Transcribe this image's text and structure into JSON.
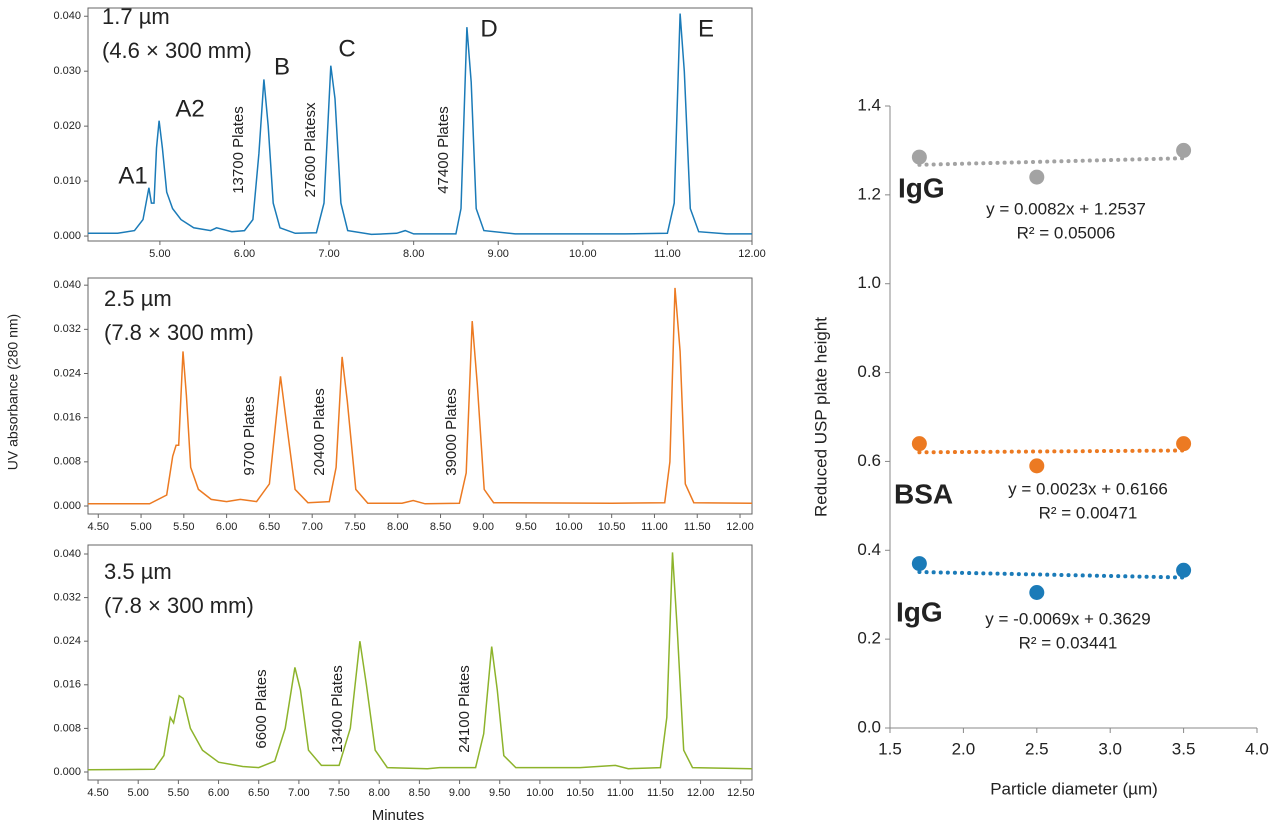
{
  "chart_data": [
    {
      "type": "line",
      "title": "1.7 µm",
      "subtitle": "(4.6 × 300 mm)",
      "color": "#1b7bb8",
      "peaks": [
        "A1",
        "A2",
        "B",
        "C",
        "D",
        "E"
      ],
      "plates": [
        "13700 Plates",
        "27600 Platesx",
        "47400 Plates"
      ],
      "x": [
        4.15,
        4.5,
        4.7,
        4.8,
        4.87,
        4.9,
        4.93,
        4.96,
        4.99,
        5.03,
        5.08,
        5.15,
        5.25,
        5.4,
        5.6,
        5.67,
        5.85,
        6.0,
        6.1,
        6.17,
        6.23,
        6.28,
        6.34,
        6.42,
        6.6,
        6.85,
        6.94,
        7.02,
        7.07,
        7.14,
        7.22,
        7.5,
        7.8,
        7.9,
        8.0,
        8.5,
        8.56,
        8.63,
        8.68,
        8.74,
        8.83,
        9.2,
        10.5,
        11.0,
        11.08,
        11.15,
        11.2,
        11.27,
        11.37,
        11.7,
        12.0
      ],
      "values": [
        0.0005,
        0.0005,
        0.001,
        0.003,
        0.0088,
        0.006,
        0.006,
        0.016,
        0.021,
        0.016,
        0.008,
        0.005,
        0.003,
        0.0015,
        0.001,
        0.0015,
        0.0008,
        0.001,
        0.003,
        0.015,
        0.0285,
        0.02,
        0.006,
        0.0015,
        0.0005,
        0.0006,
        0.006,
        0.031,
        0.025,
        0.006,
        0.001,
        0.0003,
        0.0005,
        0.001,
        0.0004,
        0.0004,
        0.005,
        0.038,
        0.028,
        0.005,
        0.001,
        0.0004,
        0.0004,
        0.0005,
        0.006,
        0.0405,
        0.03,
        0.005,
        0.0008,
        0.0004,
        0.0004
      ],
      "xlim": [
        4.15,
        12.0
      ],
      "ylim": [
        -0.0009,
        0.0415
      ],
      "xticks": [
        {
          "value": 5,
          "label": "5.00"
        },
        {
          "value": 6,
          "label": "6.00"
        },
        {
          "value": 7,
          "label": "7.00"
        },
        {
          "value": 8,
          "label": "8.00"
        },
        {
          "value": 9,
          "label": "9.00"
        },
        {
          "value": 10,
          "label": "10.00"
        },
        {
          "value": 11,
          "label": "11.00"
        },
        {
          "value": 12,
          "label": "12.00"
        }
      ],
      "yticks": [
        {
          "value": 0,
          "label": "0.000"
        },
        {
          "value": 0.01,
          "label": "0.010"
        },
        {
          "value": 0.02,
          "label": "0.020"
        },
        {
          "value": 0.03,
          "label": "0.030"
        },
        {
          "value": 0.04,
          "label": "0.040"
        }
      ]
    },
    {
      "type": "line",
      "title": "2.5 µm",
      "subtitle": "(7.8 × 300 mm)",
      "color": "#ec7a22",
      "ylabel": "UV absorbance (280 nm)",
      "plates": [
        "9700 Plates",
        "20400 Plates",
        "39000 Plates"
      ],
      "x": [
        4.38,
        5.1,
        5.3,
        5.37,
        5.41,
        5.44,
        5.49,
        5.53,
        5.58,
        5.67,
        5.82,
        6.0,
        6.16,
        6.35,
        6.5,
        6.63,
        6.7,
        6.8,
        6.95,
        7.2,
        7.28,
        7.35,
        7.41,
        7.51,
        7.65,
        8.05,
        8.18,
        8.32,
        8.72,
        8.8,
        8.87,
        8.93,
        9.01,
        9.12,
        10.5,
        11.12,
        11.18,
        11.24,
        11.3,
        11.36,
        11.46,
        12.14
      ],
      "values": [
        0.0004,
        0.0004,
        0.002,
        0.009,
        0.011,
        0.011,
        0.028,
        0.02,
        0.007,
        0.003,
        0.0012,
        0.0008,
        0.0012,
        0.0008,
        0.004,
        0.0235,
        0.015,
        0.003,
        0.0006,
        0.0008,
        0.007,
        0.027,
        0.019,
        0.003,
        0.0005,
        0.0005,
        0.001,
        0.0004,
        0.0005,
        0.006,
        0.0335,
        0.022,
        0.003,
        0.0006,
        0.0005,
        0.0006,
        0.008,
        0.0395,
        0.028,
        0.004,
        0.0006,
        0.0005
      ],
      "xlim": [
        4.38,
        12.14
      ],
      "ylim": [
        -0.00145,
        0.0413
      ],
      "xticks": [
        {
          "value": 4.5,
          "label": "4.50"
        },
        {
          "value": 5,
          "label": "5.00"
        },
        {
          "value": 5.5,
          "label": "5.50"
        },
        {
          "value": 6,
          "label": "6.00"
        },
        {
          "value": 6.5,
          "label": "6.50"
        },
        {
          "value": 7,
          "label": "7.00"
        },
        {
          "value": 7.5,
          "label": "7.50"
        },
        {
          "value": 8,
          "label": "8.00"
        },
        {
          "value": 8.5,
          "label": "8.50"
        },
        {
          "value": 9,
          "label": "9.00"
        },
        {
          "value": 9.5,
          "label": "9.50"
        },
        {
          "value": 10,
          "label": "10.00"
        },
        {
          "value": 10.5,
          "label": "10.50"
        },
        {
          "value": 11,
          "label": "11.00"
        },
        {
          "value": 11.5,
          "label": "11.50"
        },
        {
          "value": 12,
          "label": "12.00"
        }
      ],
      "yticks": [
        {
          "value": 0,
          "label": "0.000"
        },
        {
          "value": 0.008,
          "label": "0.008"
        },
        {
          "value": 0.016,
          "label": "0.016"
        },
        {
          "value": 0.024,
          "label": "0.024"
        },
        {
          "value": 0.032,
          "label": "0.032"
        },
        {
          "value": 0.04,
          "label": "0.040"
        }
      ]
    },
    {
      "type": "line",
      "title": "3.5 µm",
      "subtitle": "(7.8 × 300 mm)",
      "color": "#8db32b",
      "xlabel": "Minutes",
      "plates": [
        "6600 Plates",
        "13400 Plates",
        "24100 Plates"
      ],
      "x": [
        4.375,
        5.2,
        5.32,
        5.4,
        5.44,
        5.51,
        5.56,
        5.65,
        5.8,
        6.0,
        6.3,
        6.5,
        6.7,
        6.83,
        6.95,
        7.02,
        7.12,
        7.28,
        7.5,
        7.64,
        7.76,
        7.84,
        7.95,
        8.1,
        8.6,
        8.75,
        9.2,
        9.3,
        9.4,
        9.47,
        9.55,
        9.7,
        10.5,
        10.94,
        11.1,
        11.5,
        11.58,
        11.65,
        11.71,
        11.79,
        11.9,
        12.64
      ],
      "values": [
        0.0004,
        0.0005,
        0.003,
        0.01,
        0.009,
        0.014,
        0.0135,
        0.008,
        0.004,
        0.0018,
        0.001,
        0.0008,
        0.002,
        0.008,
        0.0192,
        0.015,
        0.004,
        0.0012,
        0.0012,
        0.008,
        0.024,
        0.016,
        0.004,
        0.0008,
        0.0006,
        0.0008,
        0.0008,
        0.007,
        0.023,
        0.015,
        0.003,
        0.0008,
        0.0008,
        0.0012,
        0.0006,
        0.0008,
        0.01,
        0.0403,
        0.026,
        0.004,
        0.0008,
        0.0006
      ],
      "xlim": [
        4.375,
        12.64
      ],
      "ylim": [
        -0.00147,
        0.04165
      ],
      "xticks": [
        {
          "value": 4.5,
          "label": "4.50"
        },
        {
          "value": 5,
          "label": "5.00"
        },
        {
          "value": 5.5,
          "label": "5.50"
        },
        {
          "value": 6,
          "label": "6.00"
        },
        {
          "value": 6.5,
          "label": "6.50"
        },
        {
          "value": 7,
          "label": "7.00"
        },
        {
          "value": 7.5,
          "label": "7.50"
        },
        {
          "value": 8,
          "label": "8.00"
        },
        {
          "value": 8.5,
          "label": "8.50"
        },
        {
          "value": 9,
          "label": "9.00"
        },
        {
          "value": 9.5,
          "label": "9.50"
        },
        {
          "value": 10,
          "label": "10.00"
        },
        {
          "value": 10.5,
          "label": "10.50"
        },
        {
          "value": 11,
          "label": "11.00"
        },
        {
          "value": 11.5,
          "label": "11.50"
        },
        {
          "value": 12,
          "label": "12.00"
        },
        {
          "value": 12.5,
          "label": "12.50"
        }
      ],
      "yticks": [
        {
          "value": 0,
          "label": "0.000"
        },
        {
          "value": 0.008,
          "label": "0.008"
        },
        {
          "value": 0.016,
          "label": "0.016"
        },
        {
          "value": 0.024,
          "label": "0.024"
        },
        {
          "value": 0.032,
          "label": "0.032"
        },
        {
          "value": 0.04,
          "label": "0.040"
        }
      ]
    },
    {
      "type": "scatter",
      "xlabel": "Particle diameter (µm)",
      "ylabel": "Reduced USP plate height",
      "xlim": [
        1.5,
        4.0
      ],
      "ylim": [
        0,
        1.4
      ],
      "xticks": [
        {
          "value": 1.5,
          "label": "1.5"
        },
        {
          "value": 2,
          "label": "2.0"
        },
        {
          "value": 2.5,
          "label": "2.5"
        },
        {
          "value": 3,
          "label": "3.0"
        },
        {
          "value": 3.5,
          "label": "3.5"
        },
        {
          "value": 4,
          "label": "4.0"
        }
      ],
      "yticks": [
        {
          "value": 0,
          "label": "0.0"
        },
        {
          "value": 0.2,
          "label": "0.2"
        },
        {
          "value": 0.4,
          "label": "0.4"
        },
        {
          "value": 0.6,
          "label": "0.6"
        },
        {
          "value": 0.8,
          "label": "0.8"
        },
        {
          "value": 1,
          "label": "1.0"
        },
        {
          "value": 1.2,
          "label": "1.2"
        },
        {
          "value": 1.4,
          "label": "1.4"
        }
      ],
      "series": [
        {
          "name": "IgG",
          "color": "#a3a3a3",
          "x": [
            1.7,
            2.5,
            3.5
          ],
          "values": [
            1.285,
            1.24,
            1.3
          ],
          "trend_x": [
            1.7,
            3.5
          ],
          "trend_values": [
            1.2676,
            1.2824
          ],
          "equation": "y = 0.0082x + 1.2537",
          "r2": "R² = 0.05006"
        },
        {
          "name": "BSA",
          "color": "#ec7a22",
          "x": [
            1.7,
            2.5,
            3.5
          ],
          "values": [
            0.64,
            0.59,
            0.64
          ],
          "trend_x": [
            1.7,
            3.5
          ],
          "trend_values": [
            0.6205,
            0.6247
          ],
          "equation": "y = 0.0023x + 0.6166",
          "r2": "R² = 0.00471"
        },
        {
          "name": "IgG",
          "color": "#1b7bb8",
          "x": [
            1.7,
            2.5,
            3.5
          ],
          "values": [
            0.37,
            0.305,
            0.355
          ],
          "trend_x": [
            1.7,
            3.5
          ],
          "trend_values": [
            0.3512,
            0.3388
          ],
          "equation": "y = -0.0069x + 0.3629",
          "r2": "R² = 0.03441"
        }
      ]
    }
  ]
}
